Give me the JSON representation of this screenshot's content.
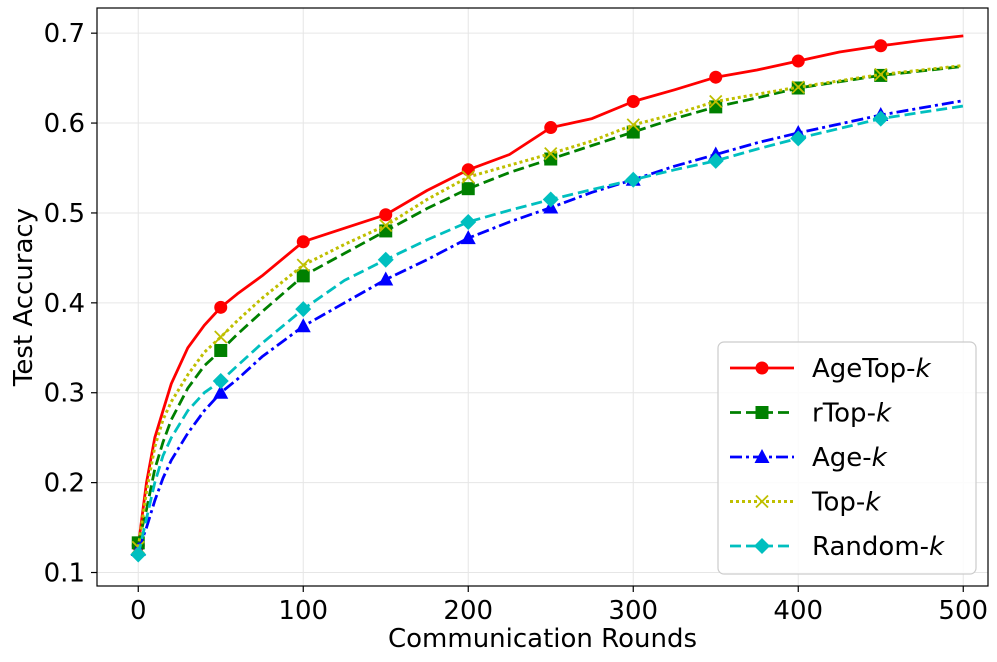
{
  "chart_data": {
    "type": "line",
    "xlabel": "Communication Rounds",
    "ylabel": "Test Accuracy",
    "xlim": [
      -25,
      515
    ],
    "ylim": [
      0.085,
      0.728
    ],
    "x_ticks": [
      0,
      100,
      200,
      300,
      400,
      500
    ],
    "y_ticks": [
      0.1,
      0.2,
      0.3,
      0.4,
      0.5,
      0.6,
      0.7
    ],
    "x_tick_labels": [
      "0",
      "100",
      "200",
      "300",
      "400",
      "500"
    ],
    "y_tick_labels": [
      "0.1",
      "0.2",
      "0.3",
      "0.4",
      "0.5",
      "0.6",
      "0.7"
    ],
    "grid": true,
    "legend_position": "bottom-right",
    "series": [
      {
        "name": "AgeTop-",
        "name_italic": "k",
        "color": "#ff0000",
        "marker": "circle",
        "dash": "solid",
        "x": [
          0,
          5,
          10,
          15,
          20,
          30,
          40,
          50,
          60,
          75,
          100,
          125,
          150,
          175,
          200,
          225,
          250,
          275,
          300,
          325,
          350,
          375,
          400,
          425,
          450,
          475,
          500
        ],
        "y": [
          0.13,
          0.2,
          0.25,
          0.28,
          0.31,
          0.35,
          0.375,
          0.395,
          0.41,
          0.43,
          0.468,
          0.483,
          0.498,
          0.525,
          0.548,
          0.565,
          0.595,
          0.605,
          0.624,
          0.637,
          0.651,
          0.659,
          0.669,
          0.679,
          0.686,
          0.692,
          0.697
        ]
      },
      {
        "name": "rTop-",
        "name_italic": "k",
        "color": "#008000",
        "marker": "square",
        "dash": "dashed",
        "x": [
          0,
          5,
          10,
          15,
          20,
          30,
          40,
          50,
          60,
          75,
          100,
          125,
          150,
          175,
          200,
          225,
          250,
          275,
          300,
          325,
          350,
          375,
          400,
          425,
          450,
          475,
          500
        ],
        "y": [
          0.133,
          0.17,
          0.215,
          0.245,
          0.27,
          0.305,
          0.33,
          0.347,
          0.365,
          0.39,
          0.43,
          0.455,
          0.48,
          0.505,
          0.527,
          0.545,
          0.56,
          0.575,
          0.59,
          0.605,
          0.618,
          0.628,
          0.639,
          0.646,
          0.653,
          0.658,
          0.663
        ]
      },
      {
        "name": "Age-",
        "name_italic": "k",
        "color": "#0000ff",
        "marker": "triangle",
        "dash": "dashdot",
        "x": [
          0,
          5,
          10,
          15,
          20,
          30,
          40,
          50,
          60,
          75,
          100,
          125,
          150,
          175,
          200,
          225,
          250,
          275,
          300,
          325,
          350,
          375,
          400,
          425,
          450,
          475,
          500
        ],
        "y": [
          0.125,
          0.15,
          0.18,
          0.205,
          0.225,
          0.255,
          0.28,
          0.3,
          0.315,
          0.34,
          0.374,
          0.4,
          0.426,
          0.448,
          0.472,
          0.49,
          0.506,
          0.523,
          0.537,
          0.552,
          0.565,
          0.578,
          0.589,
          0.599,
          0.609,
          0.617,
          0.625
        ]
      },
      {
        "name": "Top-",
        "name_italic": "k",
        "color": "#bfbf00",
        "marker": "x",
        "dash": "dotted",
        "x": [
          0,
          5,
          10,
          15,
          20,
          30,
          40,
          50,
          60,
          75,
          100,
          125,
          150,
          175,
          200,
          225,
          250,
          275,
          300,
          325,
          350,
          375,
          400,
          425,
          450,
          475,
          500
        ],
        "y": [
          0.128,
          0.19,
          0.24,
          0.27,
          0.29,
          0.32,
          0.345,
          0.362,
          0.38,
          0.405,
          0.442,
          0.465,
          0.486,
          0.515,
          0.54,
          0.553,
          0.566,
          0.58,
          0.598,
          0.61,
          0.624,
          0.632,
          0.64,
          0.647,
          0.654,
          0.659,
          0.664
        ]
      },
      {
        "name": "Random-",
        "name_italic": "k",
        "color": "#00bfbf",
        "marker": "diamond",
        "dash": "dashed",
        "x": [
          0,
          5,
          10,
          15,
          20,
          30,
          40,
          50,
          60,
          75,
          100,
          125,
          150,
          175,
          200,
          225,
          250,
          275,
          300,
          325,
          350,
          375,
          400,
          425,
          450,
          475,
          500
        ],
        "y": [
          0.12,
          0.16,
          0.2,
          0.23,
          0.25,
          0.28,
          0.3,
          0.313,
          0.33,
          0.355,
          0.393,
          0.425,
          0.448,
          0.47,
          0.49,
          0.503,
          0.515,
          0.526,
          0.537,
          0.548,
          0.558,
          0.571,
          0.583,
          0.594,
          0.605,
          0.612,
          0.619
        ]
      }
    ],
    "marker_every_x": [
      0,
      50,
      100,
      150,
      200,
      250,
      300,
      350,
      400,
      450
    ]
  }
}
